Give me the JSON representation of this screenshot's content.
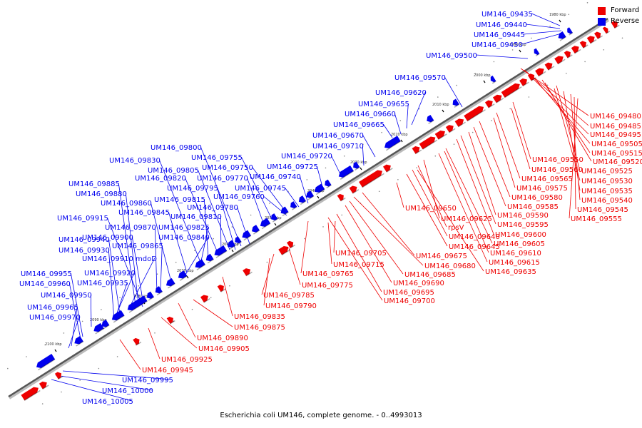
{
  "caption": "Escherichia coli UM146, complete genome. - 0..4993013",
  "legend": {
    "forward_label": "Forward",
    "reverse_label": "Reverse",
    "forward_color": "#ee0000",
    "reverse_color": "#0000ee"
  },
  "colors": {
    "forward": "#ee0000",
    "reverse": "#0000ee",
    "backbone": "#555555"
  },
  "ticks": [
    "1980 kbp",
    "1990 kbp",
    "2000 kbp",
    "2010 kbp",
    "2020 kbp",
    "2030 kbp",
    "2040 kbp",
    "2050 kbp",
    "2060 kbp",
    "2070 kbp",
    "2080 kbp",
    "2090 kbp",
    "2100 kbp"
  ],
  "reverse_labels": [
    "UM146_09435",
    "UM146_09440",
    "UM146_09445",
    "UM146_09450",
    "UM146_09500",
    "UM146_09570",
    "UM146_09620",
    "UM146_09655",
    "UM146_09660",
    "UM146_09665",
    "UM146_09670",
    "UM146_09710",
    "UM146_09720",
    "UM146_09725",
    "UM146_09740",
    "UM146_09745",
    "UM146_09750",
    "UM146_09755",
    "UM146_09760",
    "UM146_09770",
    "UM146_09780",
    "UM146_09795",
    "UM146_09800",
    "UM146_09805",
    "UM146_09810",
    "UM146_09815",
    "UM146_09820",
    "UM146_09825",
    "UM146_09830",
    "UM146_09840",
    "UM146_09845",
    "UM146_09860",
    "UM146_09865",
    "UM146_09870",
    "UM146_09880",
    "UM146_09885",
    "UM146_09900",
    "UM146_09910 mdoD",
    "UM146_09915",
    "UM146_09920",
    "UM146_09930",
    "UM146_09935",
    "UM146_09940",
    "UM146_09950",
    "UM146_09955",
    "UM146_09960",
    "UM146_09965",
    "UM146_09970",
    "UM146_09995",
    "UM146_10000",
    "UM146_10005"
  ],
  "forward_labels": [
    "UM146_09480",
    "UM146_09485",
    "UM146_09495",
    "UM146_09505",
    "UM146_09515",
    "UM146_09520",
    "UM146_09525",
    "UM146_09530",
    "UM146_09535",
    "UM146_09540",
    "UM146_09545",
    "UM146_09550",
    "UM146_09555",
    "UM146_09560",
    "UM146_09565",
    "UM146_09575",
    "UM146_09580",
    "UM146_09585",
    "UM146_09590",
    "UM146_09595",
    "UM146_09600",
    "UM146_09605",
    "UM146_09610",
    "UM146_09615",
    "UM146_09625",
    "UM146_09635",
    "rpsV",
    "UM146_09640",
    "UM146_09645",
    "UM146_09650",
    "UM146_09675",
    "UM146_09680",
    "UM146_09685",
    "UM146_09690",
    "UM146_09695",
    "UM146_09700",
    "UM146_09705",
    "UM146_09715",
    "UM146_09765",
    "UM146_09775",
    "UM146_09785",
    "UM146_09790",
    "UM146_09835",
    "UM146_09875",
    "UM146_09890",
    "UM146_09905",
    "UM146_09925",
    "UM146_09945"
  ]
}
